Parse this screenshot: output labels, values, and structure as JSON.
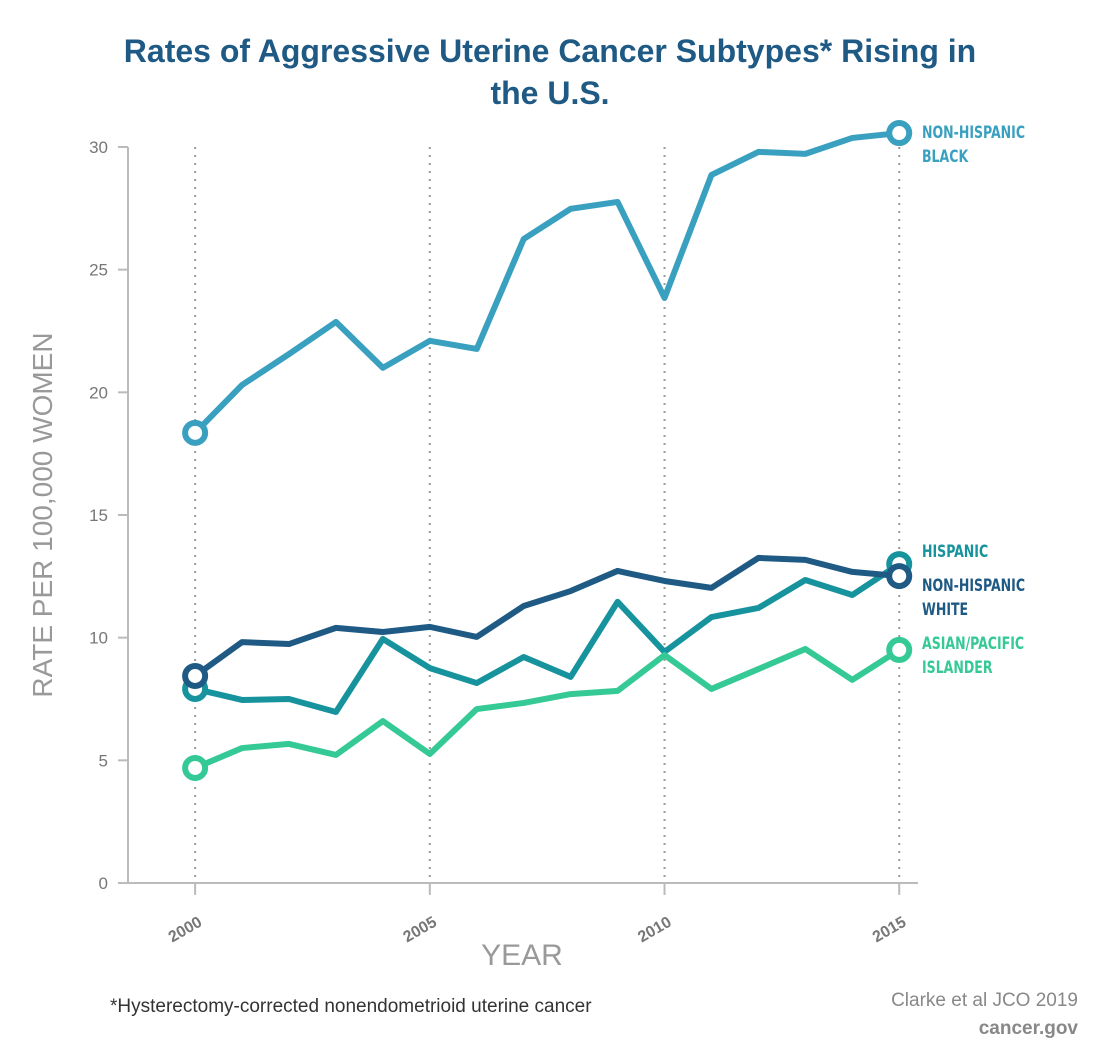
{
  "chart_data": {
    "type": "line",
    "title": "Rates of Aggressive Uterine Cancer Subtypes* Rising in the U.S.",
    "x_label": "YEAR",
    "y_label": "RATE PER 100,000 WOMEN",
    "x": [
      2000,
      2001,
      2002,
      2003,
      2004,
      2005,
      2006,
      2007,
      2008,
      2009,
      2010,
      2011,
      2012,
      2013,
      2014,
      2015
    ],
    "xlim": [
      1998.57,
      2015.4
    ],
    "xticks": [
      2000,
      2005,
      2010,
      2015
    ],
    "ylim": [
      0,
      30
    ],
    "yticks": [
      0,
      5,
      10,
      15,
      20,
      25,
      30
    ],
    "grid": "x",
    "series": [
      {
        "name": "NON-HISPANIC BLACK",
        "color": "#3aa0c0",
        "values": [
          18.35,
          20.3,
          21.56,
          22.87,
          21.0,
          22.1,
          21.77,
          26.25,
          27.48,
          27.76,
          23.85,
          28.86,
          29.8,
          29.72,
          30.37,
          30.57
        ]
      },
      {
        "name": "HISPANIC",
        "color": "#17939e",
        "values": [
          7.91,
          7.46,
          7.5,
          6.97,
          9.95,
          8.76,
          8.15,
          9.21,
          8.4,
          11.46,
          9.42,
          10.84,
          11.21,
          12.35,
          11.74,
          13.0
        ]
      },
      {
        "name": "NON-HISPANIC WHITE",
        "color": "#1f5a85",
        "values": [
          8.44,
          9.82,
          9.74,
          10.4,
          10.23,
          10.44,
          10.03,
          11.29,
          11.9,
          12.72,
          12.31,
          12.03,
          13.25,
          13.17,
          12.68,
          12.51
        ]
      },
      {
        "name": "ASIAN/PACIFIC ISLANDER",
        "color": "#35c996",
        "values": [
          4.69,
          5.5,
          5.67,
          5.22,
          6.6,
          5.26,
          7.09,
          7.34,
          7.7,
          7.83,
          9.29,
          7.91,
          8.72,
          9.54,
          8.28,
          9.5
        ]
      }
    ],
    "footnote": "*Hysterectomy-corrected nonendometrioid uterine cancer",
    "source": "Clarke et al JCO 2019",
    "site": "cancer.gov"
  }
}
